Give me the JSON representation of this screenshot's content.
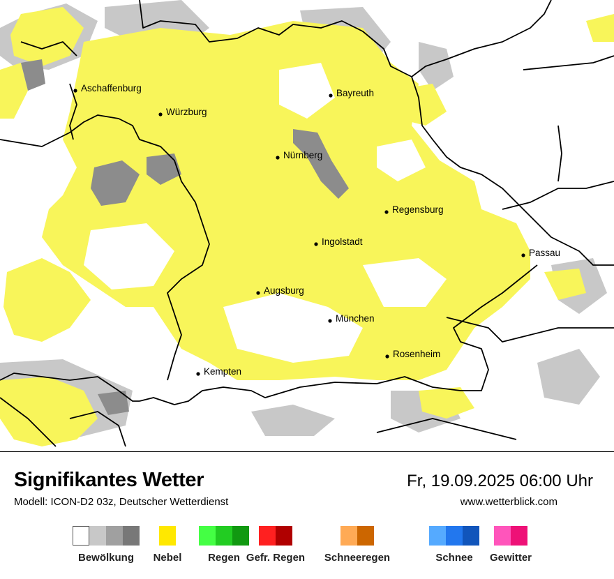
{
  "header": {
    "title": "Signifikantes Wetter",
    "subtitle": "Modell: ICON-D2 03z, Deutscher Wetterdienst",
    "datetime": "Fr, 19.09.2025 06:00 Uhr",
    "website": "www.wetterblick.com"
  },
  "map": {
    "cities": [
      {
        "name": "Aschaffenburg"
      },
      {
        "name": "Würzburg"
      },
      {
        "name": "Bayreuth"
      },
      {
        "name": "Nürnberg"
      },
      {
        "name": "Regensburg"
      },
      {
        "name": "Ingolstadt"
      },
      {
        "name": "Passau"
      },
      {
        "name": "Augsburg"
      },
      {
        "name": "München"
      },
      {
        "name": "Rosenheim"
      },
      {
        "name": "Kempten"
      }
    ]
  },
  "legend": [
    {
      "label": "Bewölkung",
      "colors": [
        "#ffffff",
        "#c8c8c8",
        "#a0a0a0",
        "#787878"
      ]
    },
    {
      "label": "Nebel",
      "colors": [
        "#ffe800"
      ]
    },
    {
      "label": "Regen",
      "colors": [
        "#44ff44",
        "#22cc22",
        "#119911"
      ]
    },
    {
      "label": "Gefr. Regen",
      "colors": [
        "#ff2020",
        "#b00000"
      ]
    },
    {
      "label": "Schneeregen",
      "colors": [
        "#ffaa55",
        "#cc6600"
      ]
    },
    {
      "label": "Schnee",
      "colors": [
        "#55aaff",
        "#2277ee",
        "#1155bb"
      ]
    },
    {
      "label": "Gewitter",
      "colors": [
        "#ff55bb",
        "#ee1177"
      ]
    }
  ],
  "colors": {
    "fog": "#f8f55a",
    "cloud_light": "#c8c8c8",
    "cloud_dark": "#8c8c8c",
    "border": "#000000"
  }
}
